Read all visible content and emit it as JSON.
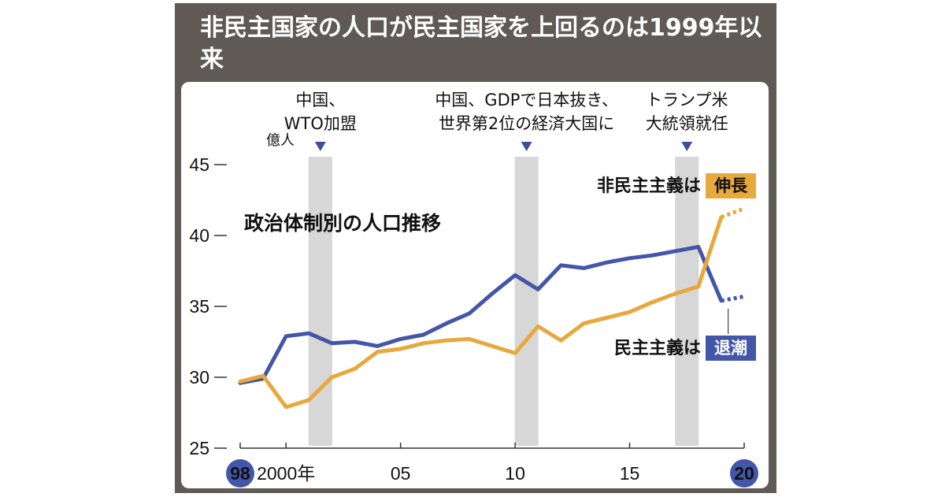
{
  "chart_data": {
    "type": "line",
    "title": "非民主国家の人口が民主国家を上回るのは1999年以来",
    "subtitle": "政治体制別の人口推移",
    "ylabel": "億人",
    "ylim": [
      25,
      45
    ],
    "yticks": [
      45,
      40,
      35,
      30,
      25
    ],
    "xlim": [
      1998,
      2020
    ],
    "xticks": [
      {
        "x": 1998,
        "label": "98",
        "badge": true
      },
      {
        "x": 2000,
        "label": "2000年"
      },
      {
        "x": 2005,
        "label": "05"
      },
      {
        "x": 2010,
        "label": "10"
      },
      {
        "x": 2015,
        "label": "15"
      },
      {
        "x": 2020,
        "label": "20",
        "badge": true
      }
    ],
    "events": [
      {
        "x": 2001.5,
        "lines": [
          "中国、",
          "WTO加盟"
        ]
      },
      {
        "x": 2010.5,
        "lines": [
          "中国、GDPで日本抜き、",
          "世界第2位の経済大国に"
        ]
      },
      {
        "x": 2017.5,
        "lines": [
          "トランプ米",
          "大統領就任"
        ]
      }
    ],
    "series": [
      {
        "name_prefix": "民主主義は",
        "name_highlight": "退潮",
        "color": "#4356a8",
        "x": [
          1998,
          1999,
          2000,
          2001,
          2002,
          2003,
          2004,
          2005,
          2006,
          2007,
          2008,
          2009,
          2010,
          2011,
          2012,
          2013,
          2014,
          2015,
          2016,
          2017,
          2018,
          2019
        ],
        "values": [
          29.6,
          29.9,
          32.9,
          33.1,
          32.4,
          32.5,
          32.2,
          32.7,
          33.0,
          33.8,
          34.5,
          35.9,
          37.2,
          36.2,
          37.9,
          37.7,
          38.1,
          38.4,
          38.6,
          38.9,
          39.2,
          35.4
        ],
        "projection": {
          "x": [
            2019,
            2020
          ],
          "values": [
            35.4,
            35.7
          ]
        }
      },
      {
        "name_prefix": "非民主主義は",
        "name_highlight": "伸長",
        "color": "#e7a83d",
        "x": [
          1998,
          1999,
          2000,
          2001,
          2002,
          2003,
          2004,
          2005,
          2006,
          2007,
          2008,
          2009,
          2010,
          2011,
          2012,
          2013,
          2014,
          2015,
          2016,
          2017,
          2018,
          2019
        ],
        "values": [
          29.7,
          30.1,
          27.9,
          28.4,
          30.0,
          30.6,
          31.8,
          32.0,
          32.4,
          32.6,
          32.7,
          32.2,
          31.7,
          33.6,
          32.6,
          33.8,
          34.2,
          34.6,
          35.3,
          35.9,
          36.4,
          41.3
        ],
        "projection": {
          "x": [
            2019,
            2020
          ],
          "values": [
            41.3,
            41.9
          ]
        }
      }
    ]
  }
}
